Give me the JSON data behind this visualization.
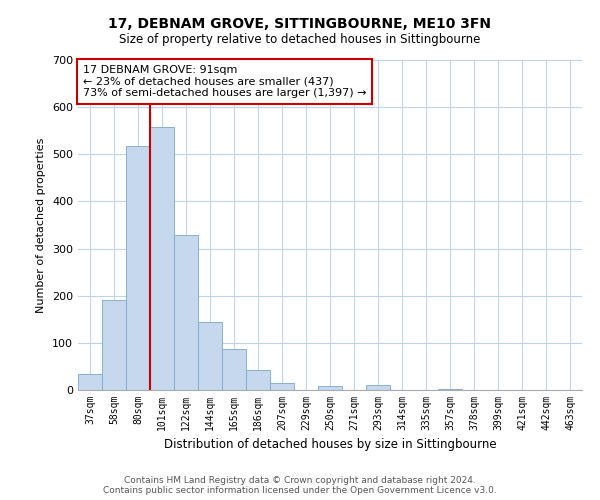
{
  "title": "17, DEBNAM GROVE, SITTINGBOURNE, ME10 3FN",
  "subtitle": "Size of property relative to detached houses in Sittingbourne",
  "xlabel": "Distribution of detached houses by size in Sittingbourne",
  "ylabel": "Number of detached properties",
  "bar_labels": [
    "37sqm",
    "58sqm",
    "80sqm",
    "101sqm",
    "122sqm",
    "144sqm",
    "165sqm",
    "186sqm",
    "207sqm",
    "229sqm",
    "250sqm",
    "271sqm",
    "293sqm",
    "314sqm",
    "335sqm",
    "357sqm",
    "378sqm",
    "399sqm",
    "421sqm",
    "442sqm",
    "463sqm"
  ],
  "bar_values": [
    33,
    190,
    518,
    558,
    328,
    145,
    87,
    42,
    15,
    0,
    8,
    0,
    10,
    0,
    0,
    3,
    0,
    0,
    0,
    0,
    0
  ],
  "bar_color": "#c5d8ee",
  "bar_edge_color": "#7ba7c9",
  "ylim": [
    0,
    700
  ],
  "yticks": [
    0,
    100,
    200,
    300,
    400,
    500,
    600,
    700
  ],
  "red_line_x": 2.5,
  "annotation_title": "17 DEBNAM GROVE: 91sqm",
  "annotation_line1": "← 23% of detached houses are smaller (437)",
  "annotation_line2": "73% of semi-detached houses are larger (1,397) →",
  "footer_line1": "Contains HM Land Registry data © Crown copyright and database right 2024.",
  "footer_line2": "Contains public sector information licensed under the Open Government Licence v3.0.",
  "red_line_color": "#cc0000",
  "bg_color": "#ffffff",
  "grid_color": "#c0d4e8"
}
